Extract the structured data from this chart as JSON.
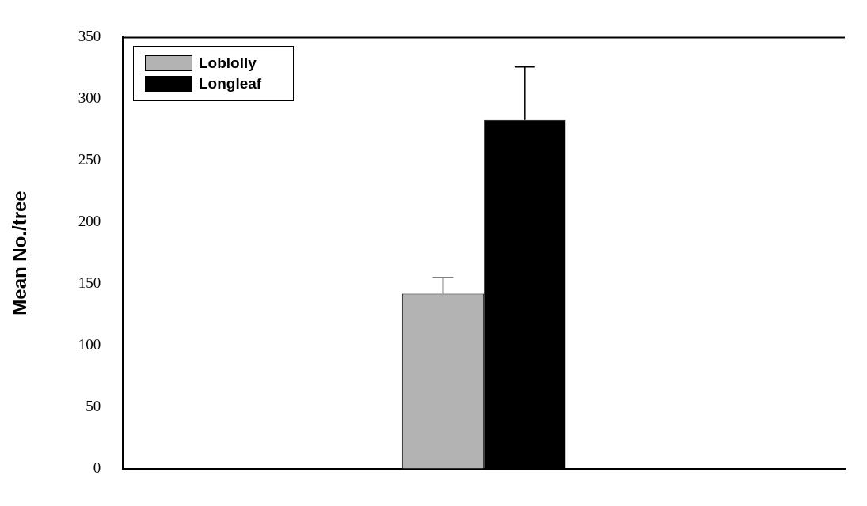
{
  "chart_data": {
    "type": "bar",
    "categories": [
      null,
      null,
      null
    ],
    "ylabel": "Mean No./tree",
    "ylim": [
      0,
      350
    ],
    "yticks": [
      0,
      50,
      100,
      150,
      200,
      250,
      300,
      350
    ],
    "grid": false,
    "legend": "top left",
    "series": [
      {
        "name": "Loblolly",
        "color": "#b3b3b3",
        "values": [
          null,
          142,
          null
        ],
        "errors": [
          null,
          [
            142,
            155
          ],
          null
        ]
      },
      {
        "name": "Longleaf",
        "color": "#000000",
        "values": [
          null,
          283,
          null
        ],
        "errors": [
          null,
          [
            283,
            326
          ],
          null
        ]
      }
    ]
  }
}
